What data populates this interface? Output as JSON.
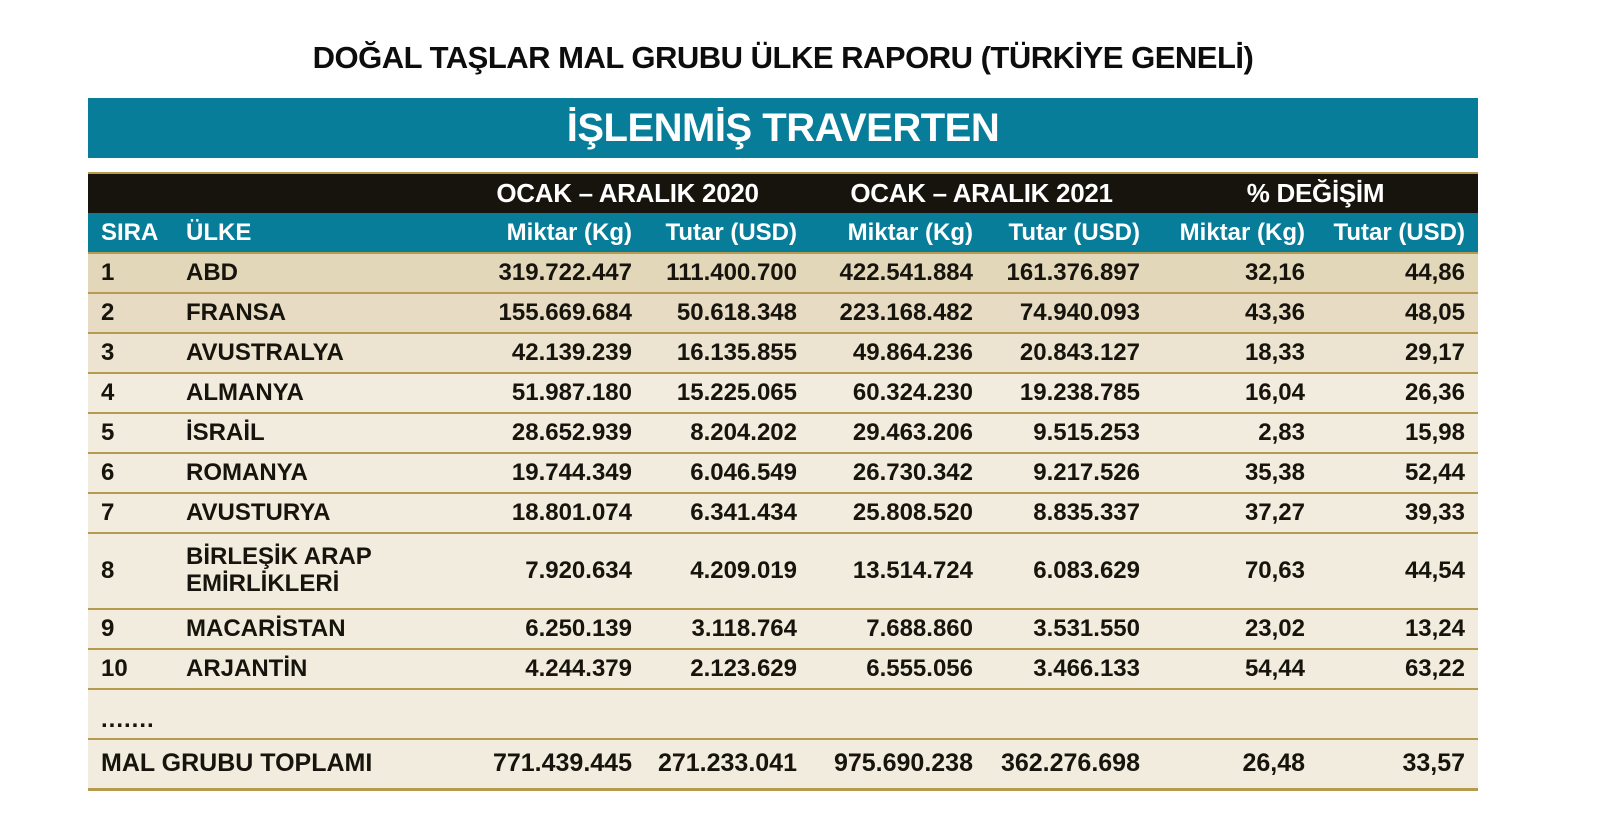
{
  "title": "DOĞAL TAŞLAR MAL GRUBU ÜLKE RAPORU (TÜRKİYE GENELİ)",
  "banner": "İŞLENMİŞ TRAVERTEN",
  "colors": {
    "teal": "#077d99",
    "band_black": "#16140d",
    "gold": "#b59a50",
    "row_1": "#e3d7b9",
    "row_2": "#e7dcc3",
    "row_3": "#ece3d0",
    "row_light": "#f1ecdd",
    "total_bg": "#ffffff"
  },
  "header": {
    "group_2020": "OCAK – ARALIK 2020",
    "group_2021": "OCAK – ARALIK 2021",
    "group_change": "% DEĞİŞİM",
    "col_sira": "SIRA",
    "col_ulke": "ÜLKE",
    "col_miktar": "Miktar (Kg)",
    "col_tutar": "Tutar (USD)"
  },
  "rows": [
    {
      "sira": "1",
      "ulke": "ABD",
      "m2020": "319.722.447",
      "t2020": "111.400.700",
      "m2021": "422.541.884",
      "t2021": "161.376.897",
      "mchg": "32,16",
      "tchg": "44,86"
    },
    {
      "sira": "2",
      "ulke": "FRANSA",
      "m2020": "155.669.684",
      "t2020": "50.618.348",
      "m2021": "223.168.482",
      "t2021": "74.940.093",
      "mchg": "43,36",
      "tchg": "48,05"
    },
    {
      "sira": "3",
      "ulke": "AVUSTRALYA",
      "m2020": "42.139.239",
      "t2020": "16.135.855",
      "m2021": "49.864.236",
      "t2021": "20.843.127",
      "mchg": "18,33",
      "tchg": "29,17"
    },
    {
      "sira": "4",
      "ulke": "ALMANYA",
      "m2020": "51.987.180",
      "t2020": "15.225.065",
      "m2021": "60.324.230",
      "t2021": "19.238.785",
      "mchg": "16,04",
      "tchg": "26,36"
    },
    {
      "sira": "5",
      "ulke": "İSRAİL",
      "m2020": "28.652.939",
      "t2020": "8.204.202",
      "m2021": "29.463.206",
      "t2021": "9.515.253",
      "mchg": "2,83",
      "tchg": "15,98"
    },
    {
      "sira": "6",
      "ulke": "ROMANYA",
      "m2020": "19.744.349",
      "t2020": "6.046.549",
      "m2021": "26.730.342",
      "t2021": "9.217.526",
      "mchg": "35,38",
      "tchg": "52,44"
    },
    {
      "sira": "7",
      "ulke": "AVUSTURYA",
      "m2020": "18.801.074",
      "t2020": "6.341.434",
      "m2021": "25.808.520",
      "t2021": "8.835.337",
      "mchg": "37,27",
      "tchg": "39,33"
    },
    {
      "sira": "8",
      "ulke": "BİRLEŞİK ARAP EMİRLİKLERİ",
      "m2020": "7.920.634",
      "t2020": "4.209.019",
      "m2021": "13.514.724",
      "t2021": "6.083.629",
      "mchg": "70,63",
      "tchg": "44,54"
    },
    {
      "sira": "9",
      "ulke": "MACARİSTAN",
      "m2020": "6.250.139",
      "t2020": "3.118.764",
      "m2021": "7.688.860",
      "t2021": "3.531.550",
      "mchg": "23,02",
      "tchg": "13,24"
    },
    {
      "sira": "10",
      "ulke": "ARJANTİN",
      "m2020": "4.244.379",
      "t2020": "2.123.629",
      "m2021": "6.555.056",
      "t2021": "3.466.133",
      "mchg": "54,44",
      "tchg": "63,22"
    }
  ],
  "ellipsis": ".......",
  "total": {
    "label": "MAL GRUBU TOPLAMI",
    "m2020": "771.439.445",
    "t2020": "271.233.041",
    "m2021": "975.690.238",
    "t2021": "362.276.698",
    "mchg": "26,48",
    "tchg": "33,57"
  }
}
